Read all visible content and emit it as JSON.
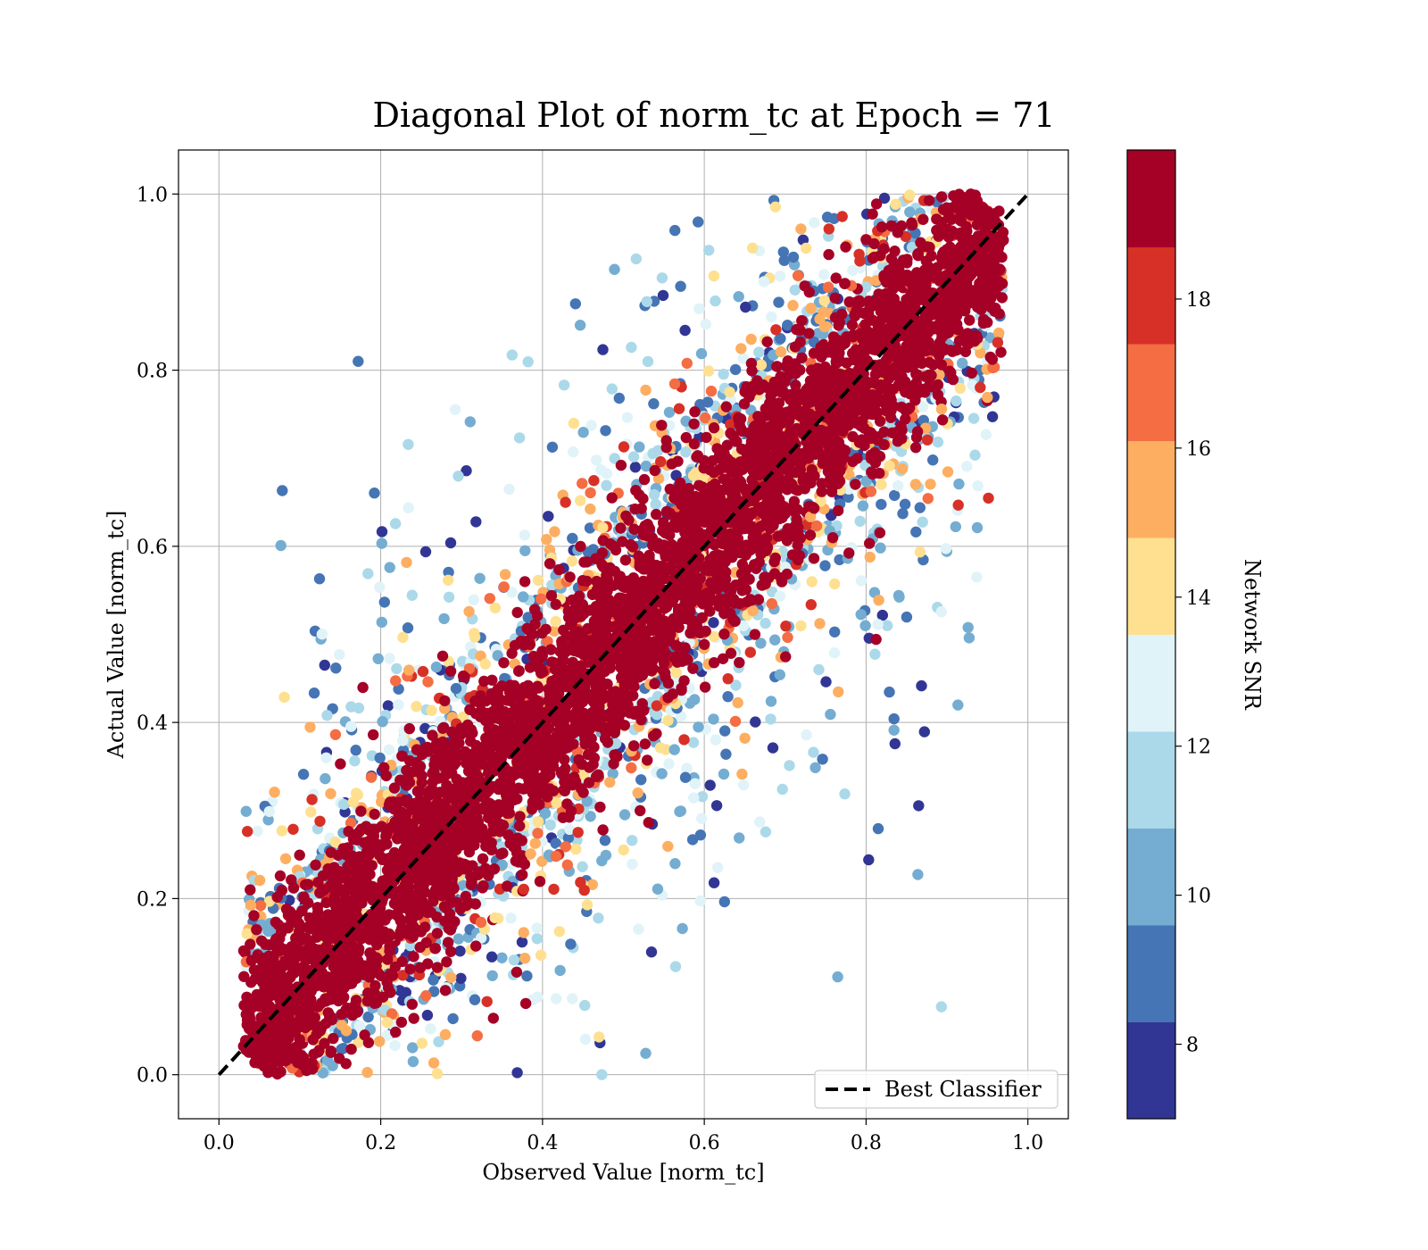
{
  "chart_data": {
    "type": "scatter",
    "title": "Diagonal Plot of norm_tc at Epoch = 71",
    "xlabel": "Observed Value [norm_tc]",
    "ylabel": "Actual Value [norm_tc]",
    "xlim": [
      -0.05,
      1.05
    ],
    "ylim": [
      -0.05,
      1.05
    ],
    "x_ticks": [
      "0.0",
      "0.2",
      "0.4",
      "0.6",
      "0.8",
      "1.0"
    ],
    "y_ticks": [
      "0.0",
      "0.2",
      "0.4",
      "0.6",
      "0.8",
      "1.0"
    ],
    "grid": true,
    "legend": {
      "placement": "lower-right",
      "entries": [
        "Best Classifier"
      ]
    },
    "reference_line": {
      "name": "Best Classifier",
      "style": "dashed",
      "color": "#000000",
      "from": [
        0,
        0
      ],
      "to": [
        1,
        1
      ]
    },
    "colorbar": {
      "label": "Network SNR",
      "range": [
        7,
        20
      ],
      "ticks": [
        "8",
        "10",
        "12",
        "14",
        "16",
        "18"
      ],
      "bins": 10,
      "colors": [
        "#313695",
        "#4575b4",
        "#74add1",
        "#abd9e9",
        "#e0f3f8",
        "#fee090",
        "#fdae61",
        "#f46d43",
        "#d73027",
        "#a50026"
      ]
    },
    "point_distribution": {
      "description_values": "dense high-SNR band along y=x, low-SNR points scattered farther from diagonal",
      "core_band_half_width": 0.07,
      "x_range": [
        0.03,
        0.97
      ],
      "y_range": [
        0.0,
        1.0
      ]
    }
  }
}
